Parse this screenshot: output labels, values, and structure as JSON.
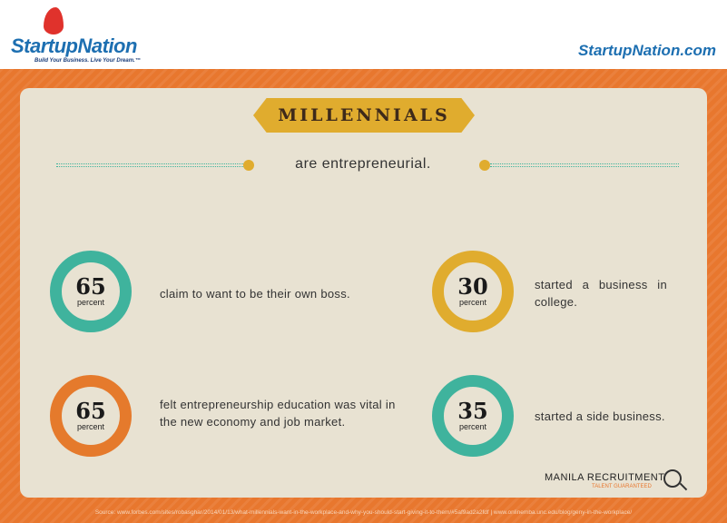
{
  "header": {
    "logo": {
      "name": "StartupNation",
      "tagline": "Build Your Business. Live Your Dream.™"
    },
    "site": "StartupNation.com"
  },
  "title": "MILLENNIALS",
  "subtitle": "are entrepreneurial.",
  "colors": {
    "orange": "#e8772e",
    "teal": "#3fb39d",
    "gold": "#e0ac2e",
    "cream": "#e8e2d2"
  },
  "stats": [
    {
      "value": "65",
      "unit": "percent",
      "text": "claim to want to be their own boss.",
      "color": "#3fb39d"
    },
    {
      "value": "30",
      "unit": "percent",
      "text": "started a business in college.",
      "color": "#e0ac2e"
    },
    {
      "value": "65",
      "unit": "percent",
      "text": "felt entrepreneurship education was vital in the new economy and job market.",
      "color": "#e57a2c"
    },
    {
      "value": "35",
      "unit": "percent",
      "text": "started a side business.",
      "color": "#3fb39d"
    }
  ],
  "credit": {
    "name": "MANILA RECRUITMENT",
    "tagline": "TALENT GUARANTEED"
  },
  "source": "Source: www.forbes.com/sites/robasghar/2014/01/13/what-millennials-want-in-the-workplace-and-why-you-should-start-giving-it-to-them/#5af9ad2a2fdf | www.onlinemba.unc.edu/blog/geny-in-the-workplace/"
}
